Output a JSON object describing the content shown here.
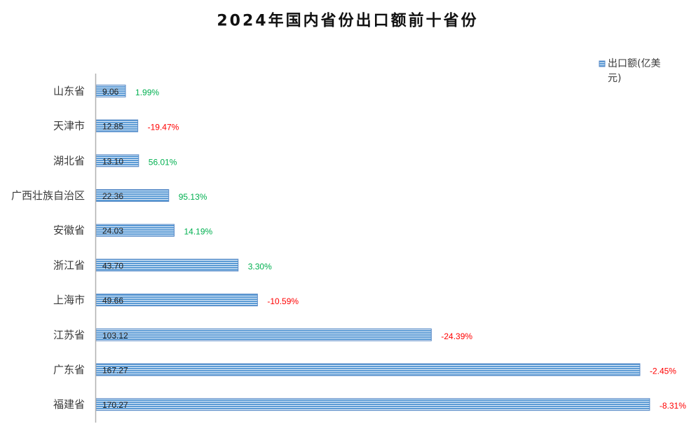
{
  "chart_data": {
    "type": "bar",
    "orientation": "horizontal",
    "title": "2024年国内省份出口额前十省份",
    "categories": [
      "山东省",
      "天津市",
      "湖北省",
      "广西壮族自治区",
      "安徽省",
      "浙江省",
      "上海市",
      "江苏省",
      "广东省",
      "福建省"
    ],
    "series": [
      {
        "name": "出口额(亿美元)",
        "values": [
          9.06,
          12.85,
          13.1,
          22.36,
          24.03,
          43.7,
          49.66,
          103.12,
          167.27,
          170.27
        ],
        "data_labels": [
          "9.06",
          "12.85",
          "13.10",
          "22.36",
          "24.03",
          "43.70",
          "49.66",
          "103.12",
          "167.27",
          "170.27"
        ]
      }
    ],
    "growth_labels": [
      "1.99%",
      "-19.47%",
      "56.01%",
      "95.13%",
      "14.19%",
      "3.30%",
      "-10.59%",
      "-24.39%",
      "-2.45%",
      "-8.31%"
    ],
    "xlim": [
      0,
      180
    ],
    "grid": false,
    "legend": "top-right",
    "colors": {
      "bar": "#5b9bd5",
      "bar_border": "#5a8ac6",
      "positive": "#00b050",
      "negative": "#ff0000",
      "axis": "#b0b0b0"
    }
  }
}
